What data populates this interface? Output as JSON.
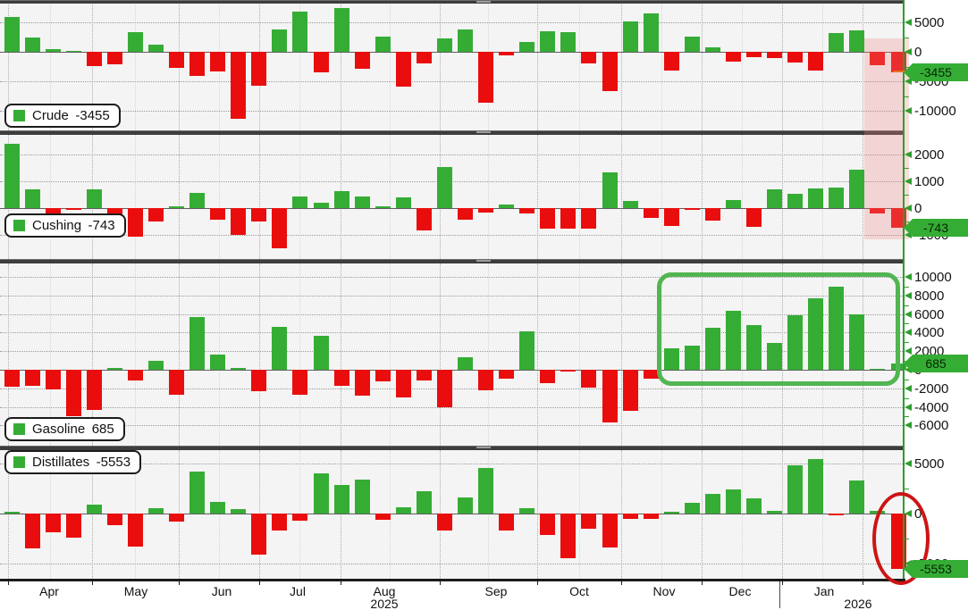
{
  "chart_data": [
    {
      "type": "bar",
      "id": "crude",
      "legend_label": "Crude",
      "last_value": -3455,
      "badge_text": "-3455",
      "y_ticks": [
        5000,
        0,
        -5000,
        -10000
      ],
      "ylim": [
        -13400,
        8500
      ],
      "values": [
        5900,
        2400,
        450,
        150,
        -2400,
        -2100,
        3300,
        1200,
        -2700,
        -4100,
        -3300,
        -11400,
        -5700,
        3800,
        6800,
        -3500,
        7400,
        -2900,
        2600,
        -5900,
        -2000,
        2300,
        3800,
        -8700,
        -650,
        1650,
        3450,
        3300,
        -2000,
        -6600,
        5150,
        6450,
        -3200,
        2550,
        750,
        -1700,
        -900,
        -1100,
        -1850,
        -3250,
        3200,
        3650,
        -2200,
        -3455
      ]
    },
    {
      "type": "bar",
      "id": "cushing",
      "legend_label": "Cushing",
      "last_value": -743,
      "badge_text": "-743",
      "y_ticks": [
        2000,
        1000,
        0,
        -1000
      ],
      "ylim": [
        -1900,
        2750
      ],
      "values": [
        2400,
        700,
        -380,
        -50,
        700,
        -780,
        -1050,
        -500,
        80,
        580,
        -430,
        -1000,
        -500,
        -1500,
        430,
        200,
        650,
        430,
        80,
        400,
        -830,
        1550,
        -430,
        -150,
        150,
        -200,
        -770,
        -750,
        -750,
        1350,
        270,
        -350,
        -650,
        -60,
        -450,
        300,
        -700,
        700,
        520,
        750,
        780,
        1430,
        -200,
        -743
      ]
    },
    {
      "type": "bar",
      "id": "gasoline",
      "legend_label": "Gasoline",
      "last_value": 685,
      "badge_text": "685",
      "y_ticks": [
        10000,
        8000,
        6000,
        4000,
        2000,
        0,
        -2000,
        -4000,
        -6000
      ],
      "ylim": [
        -7900,
        11200
      ],
      "values": [
        -1800,
        -1700,
        -2100,
        -5000,
        -4350,
        230,
        -1130,
        970,
        -2740,
        5650,
        1680,
        230,
        -2260,
        4600,
        -2740,
        3700,
        -1770,
        -2800,
        -1290,
        -3000,
        -1130,
        -4030,
        1350,
        -2230,
        -930,
        4140,
        -1450,
        -160,
        -1940,
        -5710,
        -4460,
        -930,
        2320,
        2550,
        4520,
        6380,
        4810,
        2900,
        5880,
        7710,
        8930,
        5970,
        100,
        685
      ]
    },
    {
      "type": "bar",
      "id": "distillates",
      "legend_label": "Distillates",
      "last_value": -5553,
      "badge_text": "-5553",
      "y_ticks": [
        5000,
        0,
        -5000
      ],
      "ylim": [
        -6600,
        6400
      ],
      "values": [
        150,
        -3500,
        -1880,
        -2380,
        890,
        -1190,
        -3270,
        540,
        -830,
        4170,
        1190,
        450,
        -4110,
        -1700,
        -740,
        4020,
        2830,
        3420,
        -650,
        600,
        2230,
        -1730,
        1640,
        4520,
        -1740,
        540,
        -2100,
        -4490,
        -1500,
        -3350,
        -500,
        -500,
        150,
        1050,
        1950,
        2450,
        1560,
        250,
        4850,
        5450,
        -50,
        3290,
        250,
        -5553
      ]
    }
  ],
  "x_axis": {
    "months": [
      "Apr",
      "May",
      "Jun",
      "Jul",
      "Aug",
      "Sep",
      "Oct",
      "Nov",
      "Dec",
      "Jan"
    ],
    "years": [
      "2025",
      "2026"
    ]
  },
  "annotations": {
    "pink_band_note": "highlight of two most recent weeks on Crude and Cushing panels",
    "green_box_note": "highlight of recent run of gasoline builds",
    "red_ellipse_note": "highlight of latest large distillates draw"
  },
  "colors": {
    "up": "#35ad35",
    "down": "#ea0d0d",
    "axis": "#2e9e2e",
    "badge": "#35ad35",
    "pink_band": "rgba(238,130,130,0.28)",
    "green_box": "#52b552",
    "red_ellipse": "#cd1414"
  }
}
